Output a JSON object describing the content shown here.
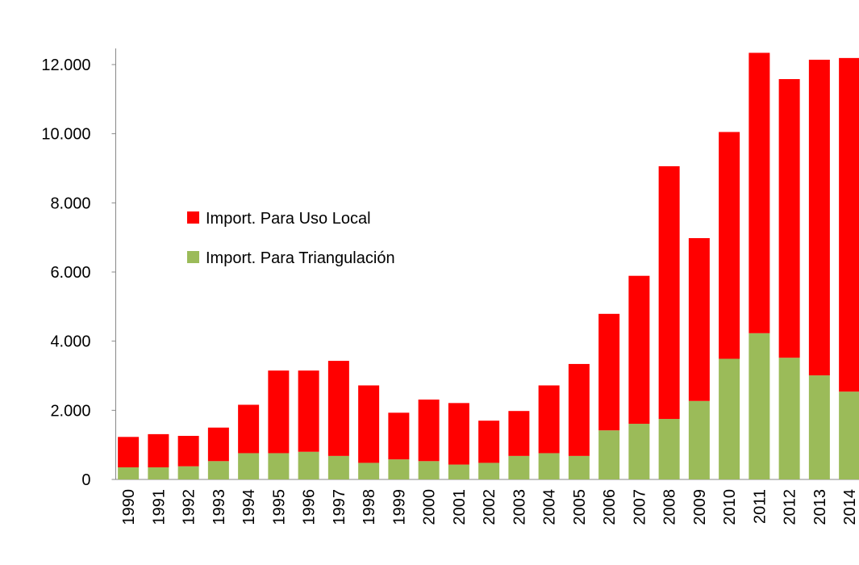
{
  "chart_data": {
    "type": "stacked_bar",
    "categories": [
      "1990",
      "1991",
      "1992",
      "1993",
      "1994",
      "1995",
      "1996",
      "1997",
      "1998",
      "1999",
      "2000",
      "2001",
      "2002",
      "2003",
      "2004",
      "2005",
      "2006",
      "2007",
      "2008",
      "2009",
      "2010",
      "2011",
      "2012",
      "2013",
      "2014"
    ],
    "series": [
      {
        "name": "Import. Para Uso Local",
        "color": "#ff0000",
        "values": [
          880,
          960,
          880,
          970,
          1400,
          2390,
          2350,
          2750,
          2240,
          1350,
          1780,
          1780,
          1220,
          1300,
          1960,
          2660,
          3370,
          4280,
          7310,
          4710,
          6560,
          8110,
          8060,
          9130,
          9650
        ]
      },
      {
        "name": "Import. Para Triangulación",
        "color": "#9bbb59",
        "values": [
          350,
          350,
          380,
          530,
          760,
          760,
          800,
          680,
          480,
          580,
          530,
          430,
          480,
          680,
          760,
          680,
          1420,
          1610,
          1750,
          2270,
          3490,
          4230,
          3520,
          3010,
          2540
        ]
      }
    ],
    "stack_order": [
      1,
      0
    ],
    "ylim": [
      0,
      12000
    ],
    "yticks": [
      0,
      {
        "value": 2000,
        "label": "2.000"
      },
      {
        "value": 4000,
        "label": "4.000"
      },
      {
        "value": 6000,
        "label": "6.000"
      },
      {
        "value": 8000,
        "label": "8.000"
      },
      {
        "value": 10000,
        "label": "10.000"
      },
      {
        "value": 12000,
        "label": "12.000"
      }
    ],
    "grid": false
  }
}
